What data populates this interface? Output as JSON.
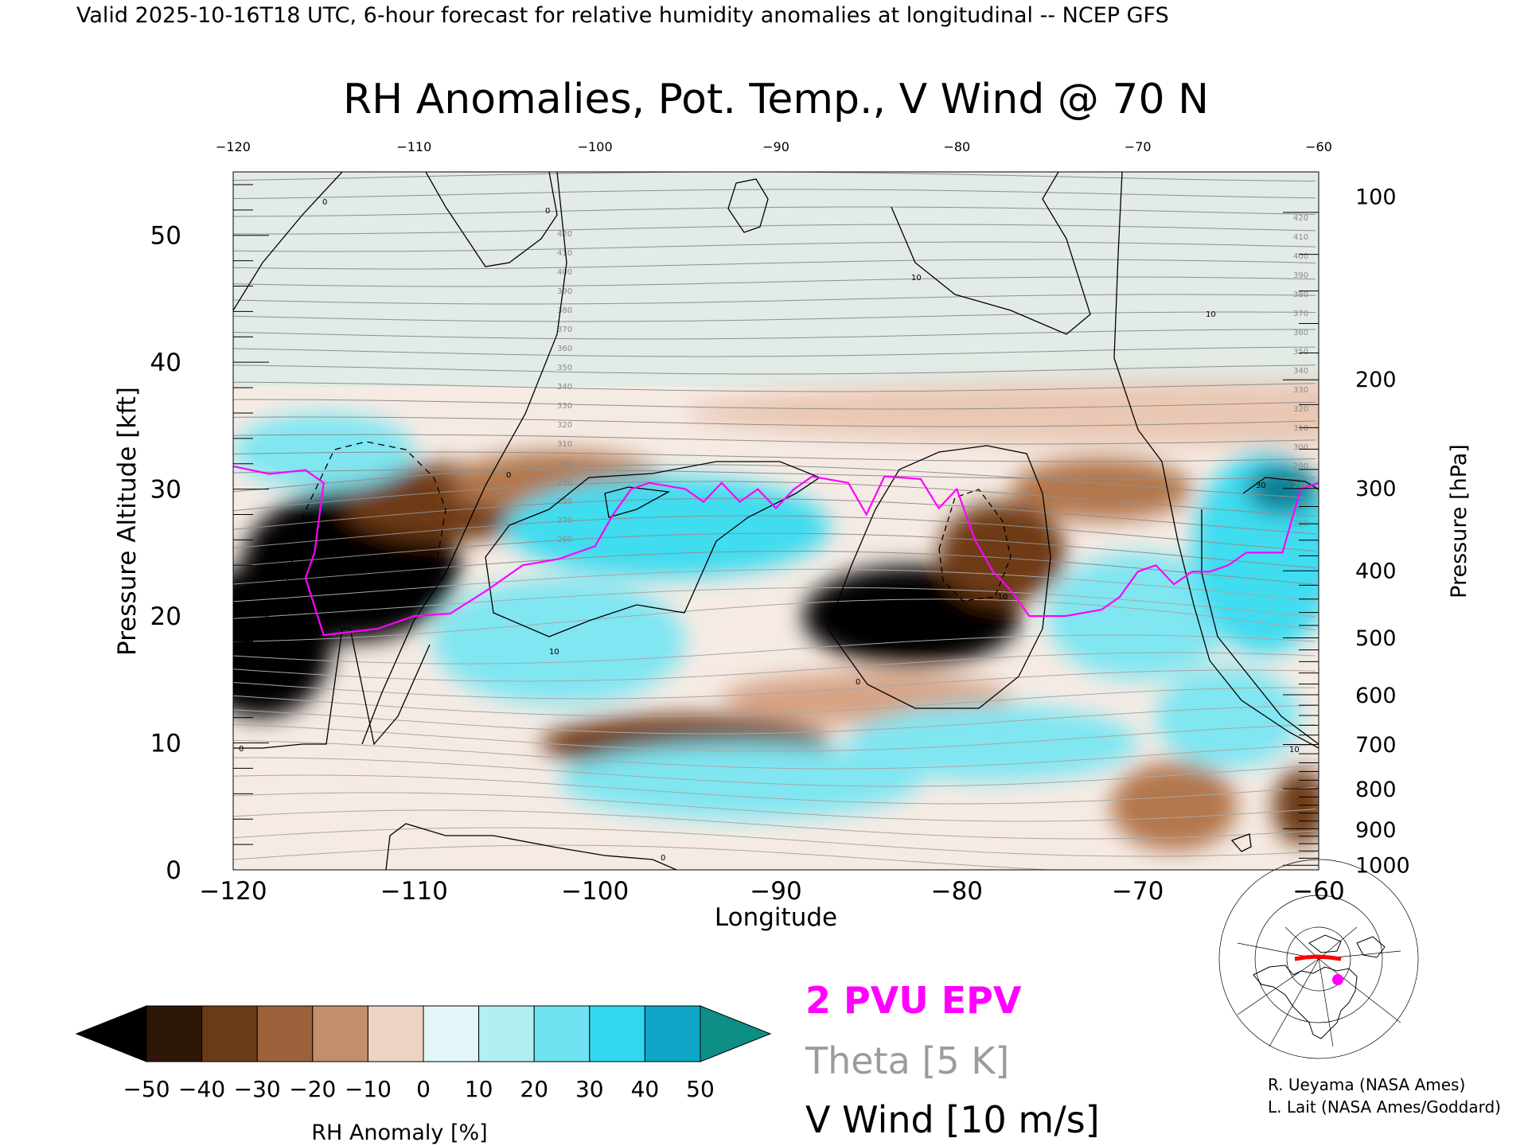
{
  "header": {
    "valid_line": "Valid 2025-10-16T18 UTC, 6-hour forecast for relative humidity anomalies at longitudinal -- NCEP GFS"
  },
  "chart_data": {
    "type": "heatmap",
    "title": "RH Anomalies, Pot. Temp., V Wind @ 70 N",
    "xlabel": "Longitude",
    "ylabel": "Pressure Altitude [kft]",
    "y2label": "Pressure [hPa]",
    "xlim": [
      -120,
      -60
    ],
    "ylim": [
      0,
      55
    ],
    "x_ticks": [
      -120,
      -110,
      -100,
      -90,
      -80,
      -70,
      -60
    ],
    "x_ticks_top": [
      -120,
      -110,
      -100,
      -90,
      -80,
      -70,
      -60
    ],
    "y_ticks": [
      0,
      10,
      20,
      30,
      40,
      50
    ],
    "pressure_ticks": [
      {
        "hpa": 100,
        "kft": 53.1
      },
      {
        "hpa": 200,
        "kft": 38.7
      },
      {
        "hpa": 300,
        "kft": 30.1
      },
      {
        "hpa": 400,
        "kft": 23.6
      },
      {
        "hpa": 500,
        "kft": 18.3
      },
      {
        "hpa": 600,
        "kft": 13.8
      },
      {
        "hpa": 700,
        "kft": 9.9
      },
      {
        "hpa": 800,
        "kft": 6.4
      },
      {
        "hpa": 900,
        "kft": 3.2
      },
      {
        "hpa": 1000,
        "kft": 0.4
      }
    ],
    "rh_blobs": [
      {
        "x": -113.5,
        "y": 24,
        "rx": 6,
        "ry": 6,
        "v": -45
      },
      {
        "x": -118.5,
        "y": 18,
        "rx": 4,
        "ry": 6,
        "v": -42
      },
      {
        "x": -108,
        "y": 29,
        "rx": 6,
        "ry": 3,
        "v": -38
      },
      {
        "x": -102,
        "y": 30.5,
        "rx": 6,
        "ry": 2.5,
        "v": -30
      },
      {
        "x": -82.5,
        "y": 20,
        "rx": 6,
        "ry": 4,
        "v": -45
      },
      {
        "x": -77.5,
        "y": 25,
        "rx": 3.5,
        "ry": 4,
        "v": -35
      },
      {
        "x": -72,
        "y": 30,
        "rx": 5,
        "ry": 2.5,
        "v": -30
      },
      {
        "x": -95,
        "y": 10,
        "rx": 8,
        "ry": 2.2,
        "v": -32
      },
      {
        "x": -85,
        "y": 13.5,
        "rx": 8,
        "ry": 2,
        "v": -18
      },
      {
        "x": -68,
        "y": 5,
        "rx": 3.5,
        "ry": 3.5,
        "v": -25
      },
      {
        "x": -61,
        "y": 5,
        "rx": 1.5,
        "ry": 3,
        "v": -40
      },
      {
        "x": -65,
        "y": 36,
        "rx": 30,
        "ry": 2.5,
        "v": -10
      },
      {
        "x": -96,
        "y": 27,
        "rx": 9,
        "ry": 4,
        "v": 28
      },
      {
        "x": -102,
        "y": 18,
        "rx": 7,
        "ry": 5,
        "v": 20
      },
      {
        "x": -92,
        "y": 7,
        "rx": 10,
        "ry": 3,
        "v": 15
      },
      {
        "x": -78,
        "y": 10,
        "rx": 8,
        "ry": 3,
        "v": 18
      },
      {
        "x": -70,
        "y": 20,
        "rx": 5,
        "ry": 5,
        "v": 20
      },
      {
        "x": -63,
        "y": 25,
        "rx": 4,
        "ry": 8,
        "v": 30
      },
      {
        "x": -62,
        "y": 30,
        "rx": 2,
        "ry": 2,
        "v": 45
      },
      {
        "x": -115,
        "y": 33,
        "rx": 5,
        "ry": 3,
        "v": 12
      },
      {
        "x": -65,
        "y": 12,
        "rx": 4,
        "ry": 4,
        "v": 15
      }
    ],
    "theta_labels": [
      "420",
      "410",
      "400",
      "390",
      "380",
      "370",
      "360",
      "350",
      "340",
      "330",
      "320",
      "310",
      "300",
      "290",
      "280",
      "270",
      "260"
    ],
    "vwind_labels": [
      "0",
      "10",
      "-10",
      "30"
    ],
    "epv_2pvu": [
      [
        -120,
        31.8
      ],
      [
        -118,
        31.2
      ],
      [
        -116,
        31.5
      ],
      [
        -115,
        30.5
      ],
      [
        -115.5,
        25
      ],
      [
        -116,
        23
      ],
      [
        -115,
        18.5
      ],
      [
        -112,
        19
      ],
      [
        -110,
        20
      ],
      [
        -108,
        20.2
      ],
      [
        -106,
        22
      ],
      [
        -104,
        24
      ],
      [
        -102,
        24.5
      ],
      [
        -100,
        25.5
      ],
      [
        -99,
        28
      ],
      [
        -98,
        30
      ],
      [
        -97,
        30.5
      ],
      [
        -95,
        30
      ],
      [
        -94,
        29
      ],
      [
        -93,
        30.5
      ],
      [
        -92,
        29
      ],
      [
        -91,
        30
      ],
      [
        -90,
        28.5
      ],
      [
        -89,
        30
      ],
      [
        -88,
        31
      ],
      [
        -86,
        30.5
      ],
      [
        -85,
        28
      ],
      [
        -84,
        31
      ],
      [
        -82,
        30.8
      ],
      [
        -81,
        28.5
      ],
      [
        -80,
        30
      ],
      [
        -79,
        26
      ],
      [
        -78,
        23.5
      ],
      [
        -77,
        22
      ],
      [
        -76,
        20
      ],
      [
        -74,
        20
      ],
      [
        -72,
        20.5
      ],
      [
        -71,
        21.5
      ],
      [
        -70,
        23.5
      ],
      [
        -69,
        24
      ],
      [
        -68,
        22.5
      ],
      [
        -67,
        23.5
      ],
      [
        -66,
        23.5
      ],
      [
        -65,
        24
      ],
      [
        -64,
        25
      ],
      [
        -62,
        25
      ],
      [
        -61,
        30
      ],
      [
        -60,
        30.5
      ]
    ],
    "legend": {
      "colorbar_ticks": [
        "-50",
        "-40",
        "-30",
        "-20",
        "-10",
        "0",
        "10",
        "20",
        "30",
        "40",
        "50"
      ],
      "colorbar_label": "RH Anomaly [%]",
      "epv_label": "2 PVU EPV",
      "theta_label": "Theta [5 K]",
      "vwind_label": "V Wind [10 m/s]"
    },
    "colors": {
      "epv": "#ff00ff",
      "theta": "#999999",
      "vwind": "#000000",
      "dry_extreme": "#000000",
      "moist_extreme": "#0d8f86"
    }
  },
  "credits": {
    "line1": "R. Ueyama (NASA Ames)",
    "line2": "L. Lait (NASA Ames/Goddard)"
  },
  "map_inset": {
    "marker_color": "#ff00ff",
    "track_color": "#ff0000"
  }
}
